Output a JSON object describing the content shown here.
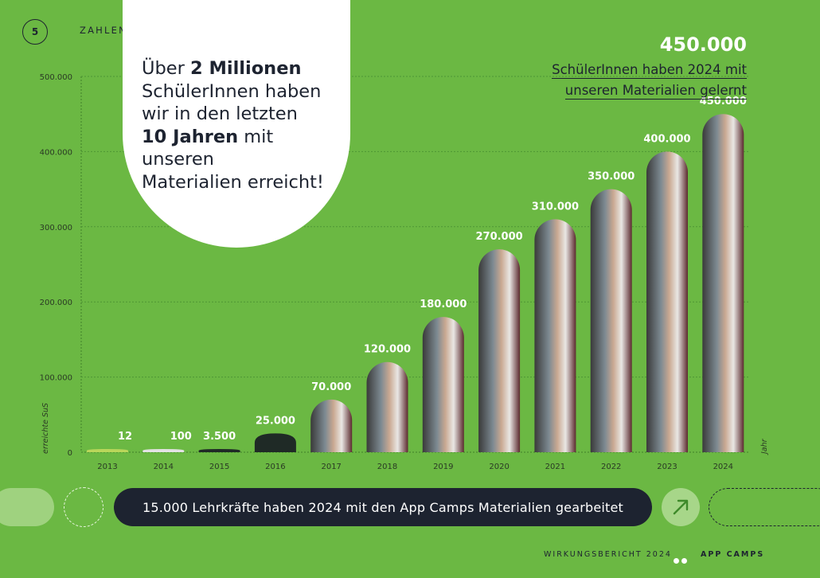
{
  "header": {
    "page_number": "5",
    "section_title": "ZAHLEN & FAKTEN"
  },
  "callout": {
    "line1_pre": "Über ",
    "line1_bold": "2 Millionen",
    "line2": "SchülerInnen haben",
    "line3": "wir in den letzten",
    "line4_bold": "10 Jahren",
    "line4_post": " mit unseren",
    "line5": "Materialien erreicht!"
  },
  "highlight": {
    "number": "450.000",
    "line1": "SchülerInnen haben 2024 mit",
    "line2": "unseren Materialien gelernt"
  },
  "teacher_banner": "15.000 Lehrkräfte haben 2024 mit den App Camps Materialien gearbeitet",
  "footer": {
    "report": "WIRKUNGSBERICHT 2024",
    "brand": "APP CAMPS"
  },
  "icons": {
    "arrow": "arrow-up-right-icon"
  },
  "colors": {
    "background": "#6bb843",
    "dark": "#1d2330",
    "white": "#ffffff",
    "light_green": "#a7d689"
  },
  "chart_data": {
    "type": "bar",
    "ylabel": "erreichte SuS",
    "xlabel": "Jahr",
    "categories": [
      "2013",
      "2014",
      "2015",
      "2016",
      "2017",
      "2018",
      "2019",
      "2020",
      "2021",
      "2022",
      "2023",
      "2024"
    ],
    "values": [
      12,
      100,
      3500,
      25000,
      70000,
      120000,
      180000,
      270000,
      310000,
      350000,
      400000,
      450000
    ],
    "value_labels": [
      "12",
      "100",
      "3.500",
      "25.000",
      "70.000",
      "120.000",
      "180.000",
      "270.000",
      "310.000",
      "350.000",
      "400.000",
      "450.000"
    ],
    "yticks": [
      0,
      100000,
      200000,
      300000,
      400000,
      500000
    ],
    "ytick_labels": [
      "0",
      "100.000",
      "200.000",
      "300.000",
      "400.000",
      "500.000"
    ],
    "ylim": [
      0,
      500000
    ],
    "grid": true
  }
}
